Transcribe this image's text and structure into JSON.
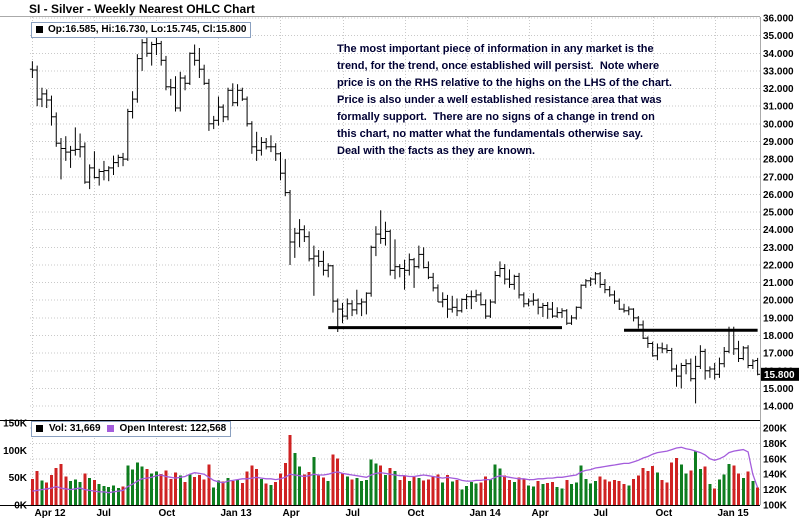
{
  "header": {
    "title": "SI - Silver - Weekly Nearest OHLC Chart"
  },
  "legend": {
    "ohlc_label": "Op:16.585, Hi:16.730, Lo:15.745, Cl:15.800",
    "vol_label": "Vol: 31,669",
    "oi_label": "Open Interest: 122,568"
  },
  "annotation": {
    "text": "The most important piece of information in any market is the\ntrend, for the trend, once established will persist.  Note where\nprice is on the RHS relative to the highs on the LHS of the chart.\nPrice is also under a well established resistance area that was\nformally support.  There are no signs of a change in trend on\nthis chart, no matter what the fundamentals otherwise say.\nDeal with the facts as they are known."
  },
  "last_price_label": "15.800",
  "colors": {
    "bar": "#000000",
    "vol_up": "#0e7d1f",
    "vol_down": "#cf2222",
    "vol_swatch": "#000000",
    "oi_line": "#a45ddc",
    "grid": "#c9c9c9",
    "axis_text": "#000000",
    "annotation": "#000033",
    "resistance": "#000000",
    "last_price_bg": "#000000",
    "last_price_text": "#ffffff"
  },
  "chart_data": {
    "type": "ohlc",
    "title": "SI - Silver - Weekly Nearest OHLC Chart",
    "period": "weekly",
    "grid": true,
    "price_axis": {
      "side": "right",
      "min": 14,
      "max": 36,
      "step": 1,
      "tick_labels": [
        "36.000",
        "35.000",
        "34.000",
        "33.000",
        "32.000",
        "31.000",
        "30.000",
        "29.000",
        "28.000",
        "27.000",
        "26.000",
        "25.000",
        "24.000",
        "23.000",
        "22.000",
        "21.000",
        "20.000",
        "19.000",
        "18.000",
        "17.000",
        "16.000",
        "15.000",
        "14.000"
      ]
    },
    "x_axis": {
      "labels": [
        {
          "index": 0,
          "label": "Apr 12"
        },
        {
          "index": 13,
          "label": "Jul"
        },
        {
          "index": 26,
          "label": "Oct"
        },
        {
          "index": 39,
          "label": "Jan 13"
        },
        {
          "index": 52,
          "label": "Apr"
        },
        {
          "index": 65,
          "label": "Jul"
        },
        {
          "index": 78,
          "label": "Oct"
        },
        {
          "index": 91,
          "label": "Jan 14"
        },
        {
          "index": 104,
          "label": "Apr"
        },
        {
          "index": 117,
          "label": "Jul"
        },
        {
          "index": 130,
          "label": "Oct"
        },
        {
          "index": 143,
          "label": "Jan 15"
        }
      ]
    },
    "volume_axis_left": {
      "ticks": [
        {
          "value": 0,
          "label": "0K"
        },
        {
          "value": 50,
          "label": "50K"
        },
        {
          "value": 100,
          "label": "100K"
        },
        {
          "value": 150,
          "label": "150K"
        }
      ]
    },
    "oi_axis_right": {
      "ticks": [
        {
          "value": 100,
          "label": "100K"
        },
        {
          "value": 120,
          "label": "120K"
        },
        {
          "value": 140,
          "label": "140K"
        },
        {
          "value": 160,
          "label": "160K"
        },
        {
          "value": 180,
          "label": "180K"
        },
        {
          "value": 200,
          "label": "200K"
        }
      ]
    },
    "last_close": 15.8,
    "last_volume": 31669,
    "last_open_interest": 122568,
    "resistance_lines": [
      {
        "from_index": 62,
        "to_index": 111,
        "price": 18.45
      },
      {
        "from_index": 124,
        "to_index": 152,
        "price": 18.3
      }
    ],
    "ohlc": [
      [
        33.1,
        33.55,
        32.6,
        33.05
      ],
      [
        33.05,
        33.3,
        31.0,
        31.4
      ],
      [
        31.4,
        32.05,
        30.95,
        31.7
      ],
      [
        31.7,
        31.95,
        30.9,
        31.35
      ],
      [
        31.35,
        31.6,
        29.9,
        30.4
      ],
      [
        30.4,
        30.65,
        28.7,
        28.9
      ],
      [
        28.9,
        29.2,
        26.85,
        28.6
      ],
      [
        28.6,
        29.3,
        27.9,
        28.4
      ],
      [
        28.4,
        28.75,
        27.5,
        28.5
      ],
      [
        28.5,
        29.8,
        28.2,
        28.55
      ],
      [
        28.55,
        29.45,
        28.1,
        28.7
      ],
      [
        28.7,
        28.95,
        26.6,
        26.7
      ],
      [
        26.7,
        27.7,
        26.3,
        27.5
      ],
      [
        27.5,
        28.45,
        26.9,
        26.95
      ],
      [
        26.95,
        27.45,
        26.5,
        27.3
      ],
      [
        27.3,
        27.9,
        26.8,
        27.35
      ],
      [
        27.35,
        27.6,
        26.75,
        27.5
      ],
      [
        27.5,
        28.2,
        27.1,
        27.8
      ],
      [
        27.8,
        28.25,
        27.55,
        28.1
      ],
      [
        28.1,
        28.35,
        27.6,
        28.0
      ],
      [
        28.0,
        30.85,
        27.9,
        30.7
      ],
      [
        30.7,
        31.85,
        30.3,
        31.4
      ],
      [
        31.4,
        33.95,
        31.2,
        33.7
      ],
      [
        33.7,
        34.8,
        33.0,
        34.6
      ],
      [
        34.6,
        35.05,
        33.8,
        34.0
      ],
      [
        34.0,
        34.65,
        33.3,
        34.5
      ],
      [
        34.5,
        35.3,
        33.9,
        34.55
      ],
      [
        34.55,
        34.7,
        33.3,
        33.6
      ],
      [
        33.6,
        33.85,
        31.9,
        32.1
      ],
      [
        32.1,
        32.55,
        31.6,
        32.05
      ],
      [
        32.05,
        32.7,
        30.7,
        30.9
      ],
      [
        30.9,
        32.95,
        30.7,
        32.6
      ],
      [
        32.6,
        32.75,
        31.9,
        32.3
      ],
      [
        32.3,
        34.05,
        32.2,
        34.0
      ],
      [
        34.0,
        34.5,
        33.3,
        33.6
      ],
      [
        33.6,
        34.3,
        32.6,
        33.1
      ],
      [
        33.1,
        33.35,
        32.2,
        32.3
      ],
      [
        32.3,
        32.55,
        29.6,
        30.0
      ],
      [
        30.0,
        30.45,
        29.7,
        30.2
      ],
      [
        30.2,
        31.55,
        29.9,
        30.95
      ],
      [
        30.95,
        31.1,
        30.1,
        30.4
      ],
      [
        30.4,
        32.05,
        30.2,
        31.9
      ],
      [
        31.9,
        32.3,
        31.0,
        31.2
      ],
      [
        31.2,
        32.25,
        31.0,
        31.9
      ],
      [
        31.9,
        32.05,
        31.3,
        31.4
      ],
      [
        31.4,
        31.55,
        29.85,
        30.0
      ],
      [
        30.0,
        30.15,
        28.3,
        28.7
      ],
      [
        28.7,
        29.55,
        27.9,
        28.5
      ],
      [
        28.5,
        29.25,
        28.2,
        28.95
      ],
      [
        28.95,
        29.2,
        28.55,
        28.7
      ],
      [
        28.7,
        29.35,
        28.4,
        28.7
      ],
      [
        28.7,
        28.9,
        27.9,
        28.3
      ],
      [
        28.3,
        28.4,
        26.8,
        27.2
      ],
      [
        27.2,
        28.0,
        25.9,
        26.1
      ],
      [
        26.1,
        26.25,
        22.0,
        23.3
      ],
      [
        23.3,
        24.1,
        22.4,
        23.8
      ],
      [
        23.8,
        24.6,
        23.0,
        24.0
      ],
      [
        24.0,
        24.25,
        23.3,
        23.6
      ],
      [
        23.6,
        23.9,
        22.2,
        22.35
      ],
      [
        22.35,
        23.1,
        20.25,
        22.5
      ],
      [
        22.5,
        22.85,
        21.9,
        22.2
      ],
      [
        22.2,
        22.8,
        21.4,
        21.7
      ],
      [
        21.7,
        22.1,
        21.3,
        21.95
      ],
      [
        21.95,
        22.0,
        19.3,
        19.95
      ],
      [
        19.95,
        20.1,
        18.2,
        19.5
      ],
      [
        19.5,
        19.85,
        18.7,
        19.1
      ],
      [
        19.1,
        20.1,
        18.9,
        19.8
      ],
      [
        19.8,
        20.0,
        19.1,
        19.45
      ],
      [
        19.45,
        20.6,
        19.2,
        19.8
      ],
      [
        19.8,
        20.1,
        19.1,
        19.9
      ],
      [
        19.9,
        20.45,
        19.2,
        20.4
      ],
      [
        20.4,
        23.1,
        20.2,
        23.0
      ],
      [
        23.0,
        24.2,
        22.5,
        23.75
      ],
      [
        23.75,
        25.1,
        23.2,
        23.5
      ],
      [
        23.5,
        24.45,
        23.1,
        23.9
      ],
      [
        23.9,
        24.0,
        21.4,
        21.7
      ],
      [
        21.7,
        23.45,
        21.2,
        21.9
      ],
      [
        21.9,
        22.05,
        21.3,
        21.8
      ],
      [
        21.8,
        22.3,
        20.6,
        21.7
      ],
      [
        21.7,
        22.65,
        21.4,
        22.3
      ],
      [
        22.3,
        22.4,
        20.7,
        21.9
      ],
      [
        21.9,
        23.1,
        21.8,
        22.6
      ],
      [
        22.6,
        23.0,
        21.8,
        21.85
      ],
      [
        21.85,
        22.2,
        21.2,
        21.3
      ],
      [
        21.3,
        21.55,
        20.5,
        20.7
      ],
      [
        20.7,
        20.9,
        19.9,
        19.9
      ],
      [
        19.9,
        20.45,
        19.6,
        20.05
      ],
      [
        20.05,
        20.3,
        19.0,
        19.5
      ],
      [
        19.5,
        20.25,
        19.3,
        19.6
      ],
      [
        19.6,
        20.1,
        19.1,
        19.4
      ],
      [
        19.4,
        20.1,
        19.3,
        20.05
      ],
      [
        20.05,
        20.35,
        19.5,
        20.2
      ],
      [
        20.2,
        20.55,
        19.5,
        20.2
      ],
      [
        20.2,
        20.6,
        19.9,
        20.3
      ],
      [
        20.3,
        20.45,
        19.7,
        19.75
      ],
      [
        19.75,
        20.05,
        18.95,
        19.1
      ],
      [
        19.1,
        20.05,
        19.0,
        19.9
      ],
      [
        19.9,
        21.65,
        19.8,
        21.4
      ],
      [
        21.4,
        22.2,
        21.3,
        21.8
      ],
      [
        21.8,
        22.05,
        20.9,
        21.2
      ],
      [
        21.2,
        21.75,
        20.7,
        20.9
      ],
      [
        20.9,
        21.45,
        20.6,
        21.35
      ],
      [
        21.35,
        21.55,
        20.1,
        20.3
      ],
      [
        20.3,
        20.45,
        19.6,
        19.8
      ],
      [
        19.8,
        20.1,
        19.65,
        19.95
      ],
      [
        19.95,
        20.4,
        19.7,
        20.0
      ],
      [
        20.0,
        20.1,
        19.2,
        19.6
      ],
      [
        19.6,
        19.85,
        19.05,
        19.7
      ],
      [
        19.7,
        19.9,
        18.95,
        19.5
      ],
      [
        19.5,
        19.9,
        19.0,
        19.1
      ],
      [
        19.1,
        19.6,
        19.0,
        19.3
      ],
      [
        19.3,
        19.55,
        19.0,
        19.4
      ],
      [
        19.4,
        19.5,
        18.6,
        18.7
      ],
      [
        18.7,
        19.15,
        18.6,
        19.0
      ],
      [
        19.0,
        19.65,
        18.9,
        19.6
      ],
      [
        19.6,
        20.9,
        19.5,
        20.85
      ],
      [
        20.85,
        21.2,
        20.7,
        21.1
      ],
      [
        21.1,
        21.3,
        20.8,
        21.2
      ],
      [
        21.2,
        21.6,
        20.9,
        21.5
      ],
      [
        21.5,
        21.6,
        20.7,
        20.9
      ],
      [
        20.9,
        21.2,
        20.4,
        20.6
      ],
      [
        20.6,
        20.8,
        20.2,
        20.3
      ],
      [
        20.3,
        20.55,
        19.8,
        19.95
      ],
      [
        19.95,
        20.1,
        19.45,
        19.5
      ],
      [
        19.5,
        19.8,
        19.3,
        19.4
      ],
      [
        19.4,
        19.65,
        19.15,
        19.5
      ],
      [
        19.5,
        19.55,
        18.8,
        19.0
      ],
      [
        19.0,
        19.1,
        18.4,
        18.6
      ],
      [
        18.6,
        18.85,
        17.8,
        17.85
      ],
      [
        17.85,
        17.95,
        17.3,
        17.55
      ],
      [
        17.55,
        17.65,
        16.8,
        16.85
      ],
      [
        16.85,
        17.55,
        16.6,
        17.3
      ],
      [
        17.3,
        17.6,
        17.0,
        17.25
      ],
      [
        17.25,
        17.5,
        17.0,
        17.15
      ],
      [
        17.15,
        17.3,
        15.95,
        16.1
      ],
      [
        16.1,
        16.35,
        15.1,
        15.7
      ],
      [
        15.7,
        16.45,
        15.0,
        16.3
      ],
      [
        16.3,
        16.65,
        15.8,
        16.4
      ],
      [
        16.4,
        16.7,
        15.4,
        15.55
      ],
      [
        15.55,
        16.85,
        14.15,
        16.25
      ],
      [
        16.25,
        17.45,
        16.1,
        17.1
      ],
      [
        17.1,
        17.25,
        15.5,
        16.0
      ],
      [
        16.0,
        16.25,
        15.6,
        16.1
      ],
      [
        16.1,
        16.45,
        15.5,
        15.8
      ],
      [
        15.8,
        16.75,
        15.6,
        16.4
      ],
      [
        16.4,
        17.35,
        16.2,
        17.1
      ],
      [
        17.1,
        18.5,
        17.0,
        18.3
      ],
      [
        18.3,
        18.5,
        16.9,
        17.25
      ],
      [
        17.25,
        17.7,
        16.5,
        16.7
      ],
      [
        16.7,
        17.4,
        16.6,
        17.3
      ],
      [
        17.3,
        17.45,
        16.15,
        16.3
      ],
      [
        16.3,
        16.65,
        16.1,
        16.55
      ],
      [
        16.585,
        16.73,
        15.745,
        15.8
      ]
    ],
    "volume_k": [
      48,
      62,
      45,
      41,
      55,
      68,
      75,
      52,
      44,
      47,
      42,
      58,
      49,
      46,
      38,
      35,
      33,
      36,
      31,
      34,
      72,
      65,
      78,
      70,
      66,
      58,
      61,
      57,
      63,
      48,
      59,
      54,
      42,
      56,
      51,
      55,
      47,
      74,
      32,
      45,
      43,
      49,
      44,
      46,
      40,
      61,
      72,
      66,
      48,
      39,
      37,
      42,
      58,
      77,
      128,
      95,
      70,
      56,
      60,
      88,
      54,
      50,
      44,
      92,
      85,
      58,
      52,
      47,
      49,
      44,
      46,
      83,
      76,
      72,
      55,
      68,
      62,
      46,
      53,
      44,
      51,
      49,
      45,
      47,
      52,
      56,
      41,
      55,
      43,
      46,
      28,
      35,
      42,
      39,
      41,
      52,
      48,
      74,
      67,
      54,
      46,
      42,
      50,
      48,
      36,
      34,
      44,
      38,
      40,
      42,
      33,
      30,
      46,
      38,
      41,
      72,
      48,
      39,
      44,
      52,
      47,
      43,
      46,
      44,
      38,
      36,
      48,
      54,
      68,
      62,
      71,
      59,
      46,
      41,
      78,
      86,
      74,
      58,
      63,
      98,
      66,
      70,
      38,
      30,
      47,
      56,
      75,
      72,
      58,
      49,
      61,
      44,
      31.669
    ],
    "open_interest_k": [
      118,
      119,
      120,
      121,
      122,
      124,
      122,
      121,
      120,
      121,
      122,
      120,
      119,
      118,
      117,
      117,
      116,
      117,
      118,
      119,
      124,
      127,
      131,
      134,
      135,
      136,
      138,
      139,
      137,
      136,
      135,
      136,
      137,
      140,
      142,
      141,
      140,
      136,
      132,
      130,
      129,
      131,
      132,
      133,
      134,
      134,
      135,
      136,
      135,
      134,
      134,
      133,
      134,
      136,
      140,
      139,
      138,
      137,
      138,
      140,
      139,
      139,
      140,
      142,
      143,
      141,
      140,
      139,
      138,
      137,
      136,
      139,
      141,
      142,
      141,
      140,
      139,
      138,
      138,
      137,
      137,
      138,
      139,
      138,
      137,
      136,
      135,
      136,
      135,
      134,
      132,
      131,
      131,
      132,
      132,
      133,
      133,
      136,
      138,
      137,
      136,
      135,
      134,
      134,
      133,
      133,
      134,
      134,
      135,
      135,
      136,
      136,
      137,
      138,
      139,
      143,
      145,
      146,
      148,
      149,
      150,
      151,
      152,
      153,
      154,
      154,
      156,
      158,
      161,
      163,
      166,
      168,
      169,
      170,
      172,
      174,
      175,
      173,
      172,
      170,
      168,
      165,
      160,
      158,
      160,
      163,
      168,
      170,
      171,
      172,
      169,
      140,
      122.568
    ]
  }
}
